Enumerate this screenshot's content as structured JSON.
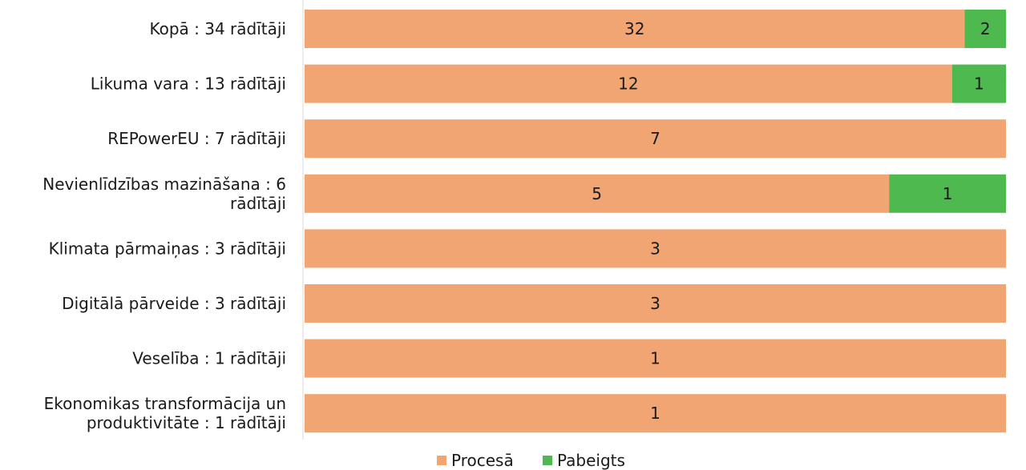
{
  "chart_data": {
    "type": "bar",
    "orientation": "horizontal",
    "stacked": "percent",
    "categories": [
      [
        "Kopā : 34 rādītāji"
      ],
      [
        "Likuma vara : 13 rādītāji"
      ],
      [
        "REPowerEU : 7 rādītāji"
      ],
      [
        "Nevienlīdzības mazināšana : 6",
        "rādītāji"
      ],
      [
        "Klimata pārmaiņas : 3 rādītāji"
      ],
      [
        "Digitālā pārveide : 3 rādītāji"
      ],
      [
        "Veselība : 1 rādītāji"
      ],
      [
        "Ekonomikas transformācija un",
        "produktivitāte : 1 rādītāji"
      ]
    ],
    "series": [
      {
        "name": "Procesā",
        "color": "#F0A572",
        "values": [
          32,
          12,
          7,
          5,
          3,
          3,
          1,
          1
        ]
      },
      {
        "name": "Pabeigts",
        "color": "#4DB94F",
        "values": [
          2,
          1,
          0,
          1,
          0,
          0,
          0,
          0
        ]
      }
    ],
    "legend": "bottom",
    "grid": false
  }
}
